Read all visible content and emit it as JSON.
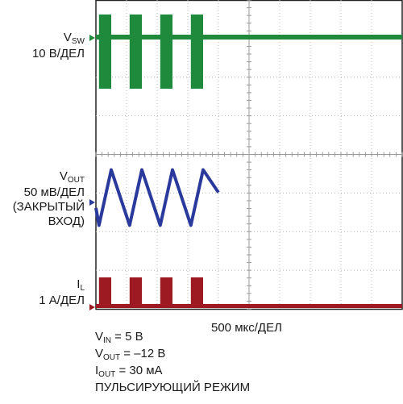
{
  "chart_data": {
    "type": "line",
    "channels": [
      {
        "name": "VSW",
        "name_main": "V",
        "name_sub": "SW",
        "scale": "10 В/ДЕЛ",
        "color": "#1f8a3c",
        "burst_windows_div": [
          [
            0.1,
            0.5
          ],
          [
            1.1,
            1.5
          ],
          [
            2.1,
            2.5
          ],
          [
            3.1,
            3.5
          ]
        ]
      },
      {
        "name": "VOUT",
        "name_main": "V",
        "name_sub": "OUT",
        "scale": "50 мВ/ДЕЛ",
        "coupling": "(ЗАКРЫТЫЙ",
        "coupling2": "ВХОД)",
        "color": "#2a3a9c",
        "x_div": [
          0.0,
          0.1,
          0.5,
          1.1,
          1.5,
          2.1,
          2.5,
          3.1,
          3.5,
          4.0
        ],
        "y_div": [
          -0.3,
          -0.8,
          0.8,
          -0.8,
          0.8,
          -0.8,
          0.8,
          -0.8,
          0.8,
          0.15
        ]
      },
      {
        "name": "IL",
        "name_main": "I",
        "name_sub": "L",
        "scale": "1 А/ДЕЛ",
        "color": "#9e1a22",
        "pulse_windows_div": [
          [
            0.1,
            0.5
          ],
          [
            1.1,
            1.5
          ],
          [
            2.1,
            2.5
          ],
          [
            3.1,
            3.5
          ]
        ]
      }
    ],
    "timebase": "500 мкс/ДЕЛ",
    "grid": true,
    "divisions_x": 10,
    "divisions_y": 8
  },
  "conditions": {
    "vin_main": "V",
    "vin_sub": "IN",
    "vin_value": " = 5 В",
    "vout_main": "V",
    "vout_sub": "OUT",
    "vout_value": " = –12 В",
    "iout_main": "I",
    "iout_sub": "OUT",
    "iout_value": " = 30 мА",
    "mode": "ПУЛЬСИРУЮЩИЙ РЕЖИМ"
  }
}
